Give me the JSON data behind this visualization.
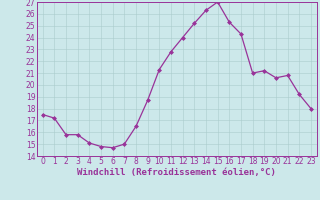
{
  "hours": [
    0,
    1,
    2,
    3,
    4,
    5,
    6,
    7,
    8,
    9,
    10,
    11,
    12,
    13,
    14,
    15,
    16,
    17,
    18,
    19,
    20,
    21,
    22,
    23
  ],
  "values": [
    17.5,
    17.2,
    15.8,
    15.8,
    15.1,
    14.8,
    14.7,
    15.0,
    16.5,
    18.7,
    21.3,
    22.8,
    24.0,
    25.2,
    26.3,
    27.0,
    25.3,
    24.3,
    21.0,
    21.2,
    20.6,
    20.8,
    19.2,
    18.0
  ],
  "ylim": [
    14,
    27
  ],
  "yticks": [
    14,
    15,
    16,
    17,
    18,
    19,
    20,
    21,
    22,
    23,
    24,
    25,
    26,
    27
  ],
  "xticks": [
    0,
    1,
    2,
    3,
    4,
    5,
    6,
    7,
    8,
    9,
    10,
    11,
    12,
    13,
    14,
    15,
    16,
    17,
    18,
    19,
    20,
    21,
    22,
    23
  ],
  "xlabel": "Windchill (Refroidissement éolien,°C)",
  "line_color": "#993399",
  "marker": "D",
  "marker_size": 2.0,
  "background_color": "#cce8ea",
  "grid_color": "#aacccc",
  "tick_color": "#993399",
  "label_color": "#993399",
  "tick_fontsize": 5.5,
  "label_fontsize": 6.5
}
